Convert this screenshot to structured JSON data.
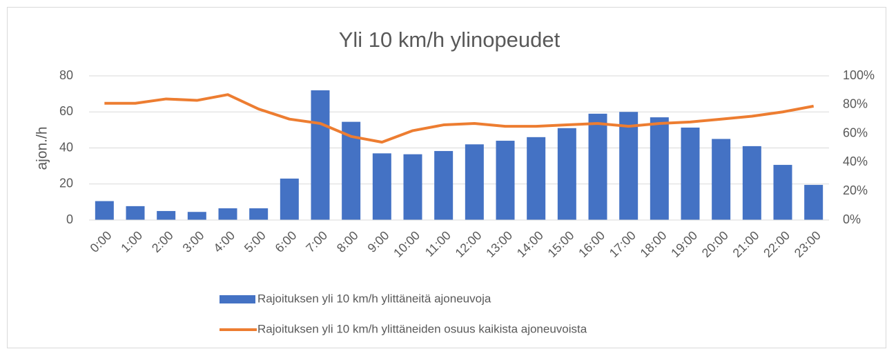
{
  "chart_data": {
    "type": "bar_line",
    "title": "Yli 10 km/h ylinopeudet",
    "ylabel": "ajon./h",
    "categories": [
      "0:00",
      "1:00",
      "2:00",
      "3:00",
      "4:00",
      "5:00",
      "6:00",
      "7:00",
      "8:00",
      "9:00",
      "10:00",
      "11:00",
      "12:00",
      "13:00",
      "14:00",
      "15:00",
      "16:00",
      "17:00",
      "18:00",
      "19:00",
      "20:00",
      "21:00",
      "22:00",
      "23:00"
    ],
    "series": [
      {
        "name": "Rajoituksen yli 10 km/h ylittäneitä ajoneuvoja",
        "type": "bar",
        "color": "#4472c4",
        "values": [
          10.5,
          7.7,
          5,
          4.5,
          6.5,
          6.5,
          23,
          72,
          54.5,
          37,
          36.5,
          38.3,
          42,
          44,
          46,
          51,
          59,
          60,
          57,
          51.3,
          45,
          41,
          30.6,
          19.5
        ]
      },
      {
        "name": "Rajoituksen yli 10 km/h ylittäneiden osuus kaikista ajoneuvoista",
        "type": "line",
        "color": "#ed7d31",
        "axis": "y2",
        "values": [
          81,
          81,
          84,
          83,
          87,
          77,
          70,
          67,
          58,
          54,
          62,
          66,
          67,
          65,
          65,
          66,
          67,
          65,
          67,
          68,
          70,
          72,
          75,
          79
        ]
      }
    ],
    "ylim": [
      0,
      80
    ],
    "yticks": [
      0,
      20,
      40,
      60,
      80
    ],
    "y2lim": [
      0,
      100
    ],
    "y2ticks": [
      {
        "value": 0,
        "label": "0%"
      },
      {
        "value": 20,
        "label": "20%"
      },
      {
        "value": 40,
        "label": "40%"
      },
      {
        "value": 60,
        "label": "60%"
      },
      {
        "value": 80,
        "label": "80%"
      },
      {
        "value": 100,
        "label": "100%"
      }
    ],
    "grid": true
  }
}
